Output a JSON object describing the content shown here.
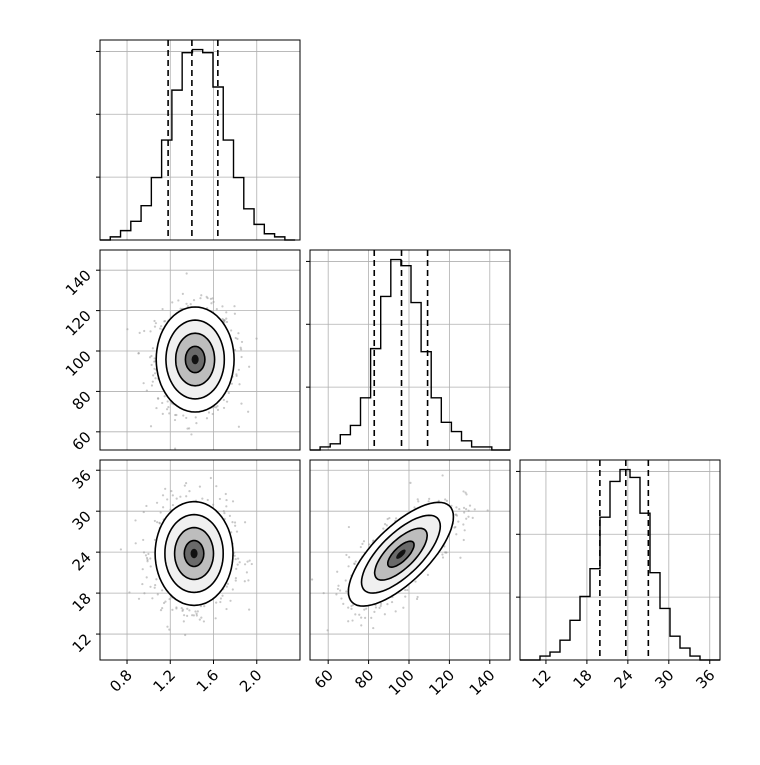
{
  "chart_data": {
    "type": "corner",
    "parameters": [
      "",
      "",
      ""
    ],
    "grid": true,
    "ticks": {
      "p0": {
        "values": [
          0.8,
          1.2,
          1.6,
          2.0
        ],
        "labels": [
          "0.8",
          "1.2",
          "1.6",
          "2.0"
        ]
      },
      "p1": {
        "values": [
          60,
          80,
          100,
          120,
          140
        ],
        "labels": [
          "60",
          "80",
          "100",
          "120",
          "140"
        ]
      },
      "p2": {
        "values": [
          12,
          18,
          24,
          30,
          36
        ],
        "labels": [
          "12",
          "18",
          "24",
          "30",
          "36"
        ]
      }
    },
    "ranges": {
      "p0": [
        0.55,
        2.4
      ],
      "p1": [
        51,
        150
      ],
      "p2": [
        8.2,
        37.5
      ]
    },
    "marginals": [
      {
        "param": "p0",
        "bin_edges": [
          0.55,
          0.645,
          0.74,
          0.835,
          0.93,
          1.025,
          1.12,
          1.215,
          1.31,
          1.405,
          1.5,
          1.595,
          1.69,
          1.785,
          1.88,
          1.975,
          2.07,
          2.165,
          2.26,
          2.355
        ],
        "counts": [
          0,
          1,
          3,
          6,
          11,
          20,
          32,
          48,
          60,
          61,
          60,
          49,
          32,
          20,
          10,
          5,
          2,
          1,
          0
        ],
        "quantiles": [
          1.18,
          1.4,
          1.64
        ]
      },
      {
        "param": "p1",
        "bin_edges": [
          51,
          56,
          61,
          66,
          71,
          76,
          81,
          86,
          91,
          96,
          101,
          106,
          111,
          116,
          121,
          126,
          131,
          136,
          141,
          146,
          150
        ],
        "counts": [
          0,
          1,
          2,
          5,
          8,
          17,
          33,
          50,
          62,
          60,
          48,
          32,
          17,
          9,
          6,
          3,
          1,
          1,
          0,
          0
        ],
        "quantiles": [
          82.8,
          96.3,
          109.2
        ]
      },
      {
        "param": "p2",
        "bin_edges": [
          8.2,
          9.665,
          11.13,
          12.595,
          14.06,
          15.525,
          16.99,
          18.455,
          19.92,
          21.385,
          22.85,
          24.315,
          25.78,
          27.245,
          28.71,
          30.175,
          31.64,
          33.105,
          34.57,
          36.035,
          37.5
        ],
        "counts": [
          0,
          0,
          1,
          2,
          5,
          10,
          16,
          23,
          36,
          45,
          48,
          46,
          37,
          22,
          13,
          6,
          3,
          1,
          0,
          0
        ],
        "quantiles": [
          19.9,
          23.7,
          27.0
        ]
      }
    ],
    "pairs": [
      {
        "x": "p0",
        "y": "p1",
        "center": [
          1.43,
          95.8
        ],
        "sigma": [
          0.18,
          13
        ],
        "corr": 0.0
      },
      {
        "x": "p0",
        "y": "p2",
        "center": [
          1.42,
          23.8
        ],
        "sigma": [
          0.18,
          3.8
        ],
        "corr": 0.0
      },
      {
        "x": "p1",
        "y": "p2",
        "center": [
          96,
          23.7
        ],
        "sigma": [
          13,
          3.8
        ],
        "corr": 0.72
      }
    ]
  }
}
